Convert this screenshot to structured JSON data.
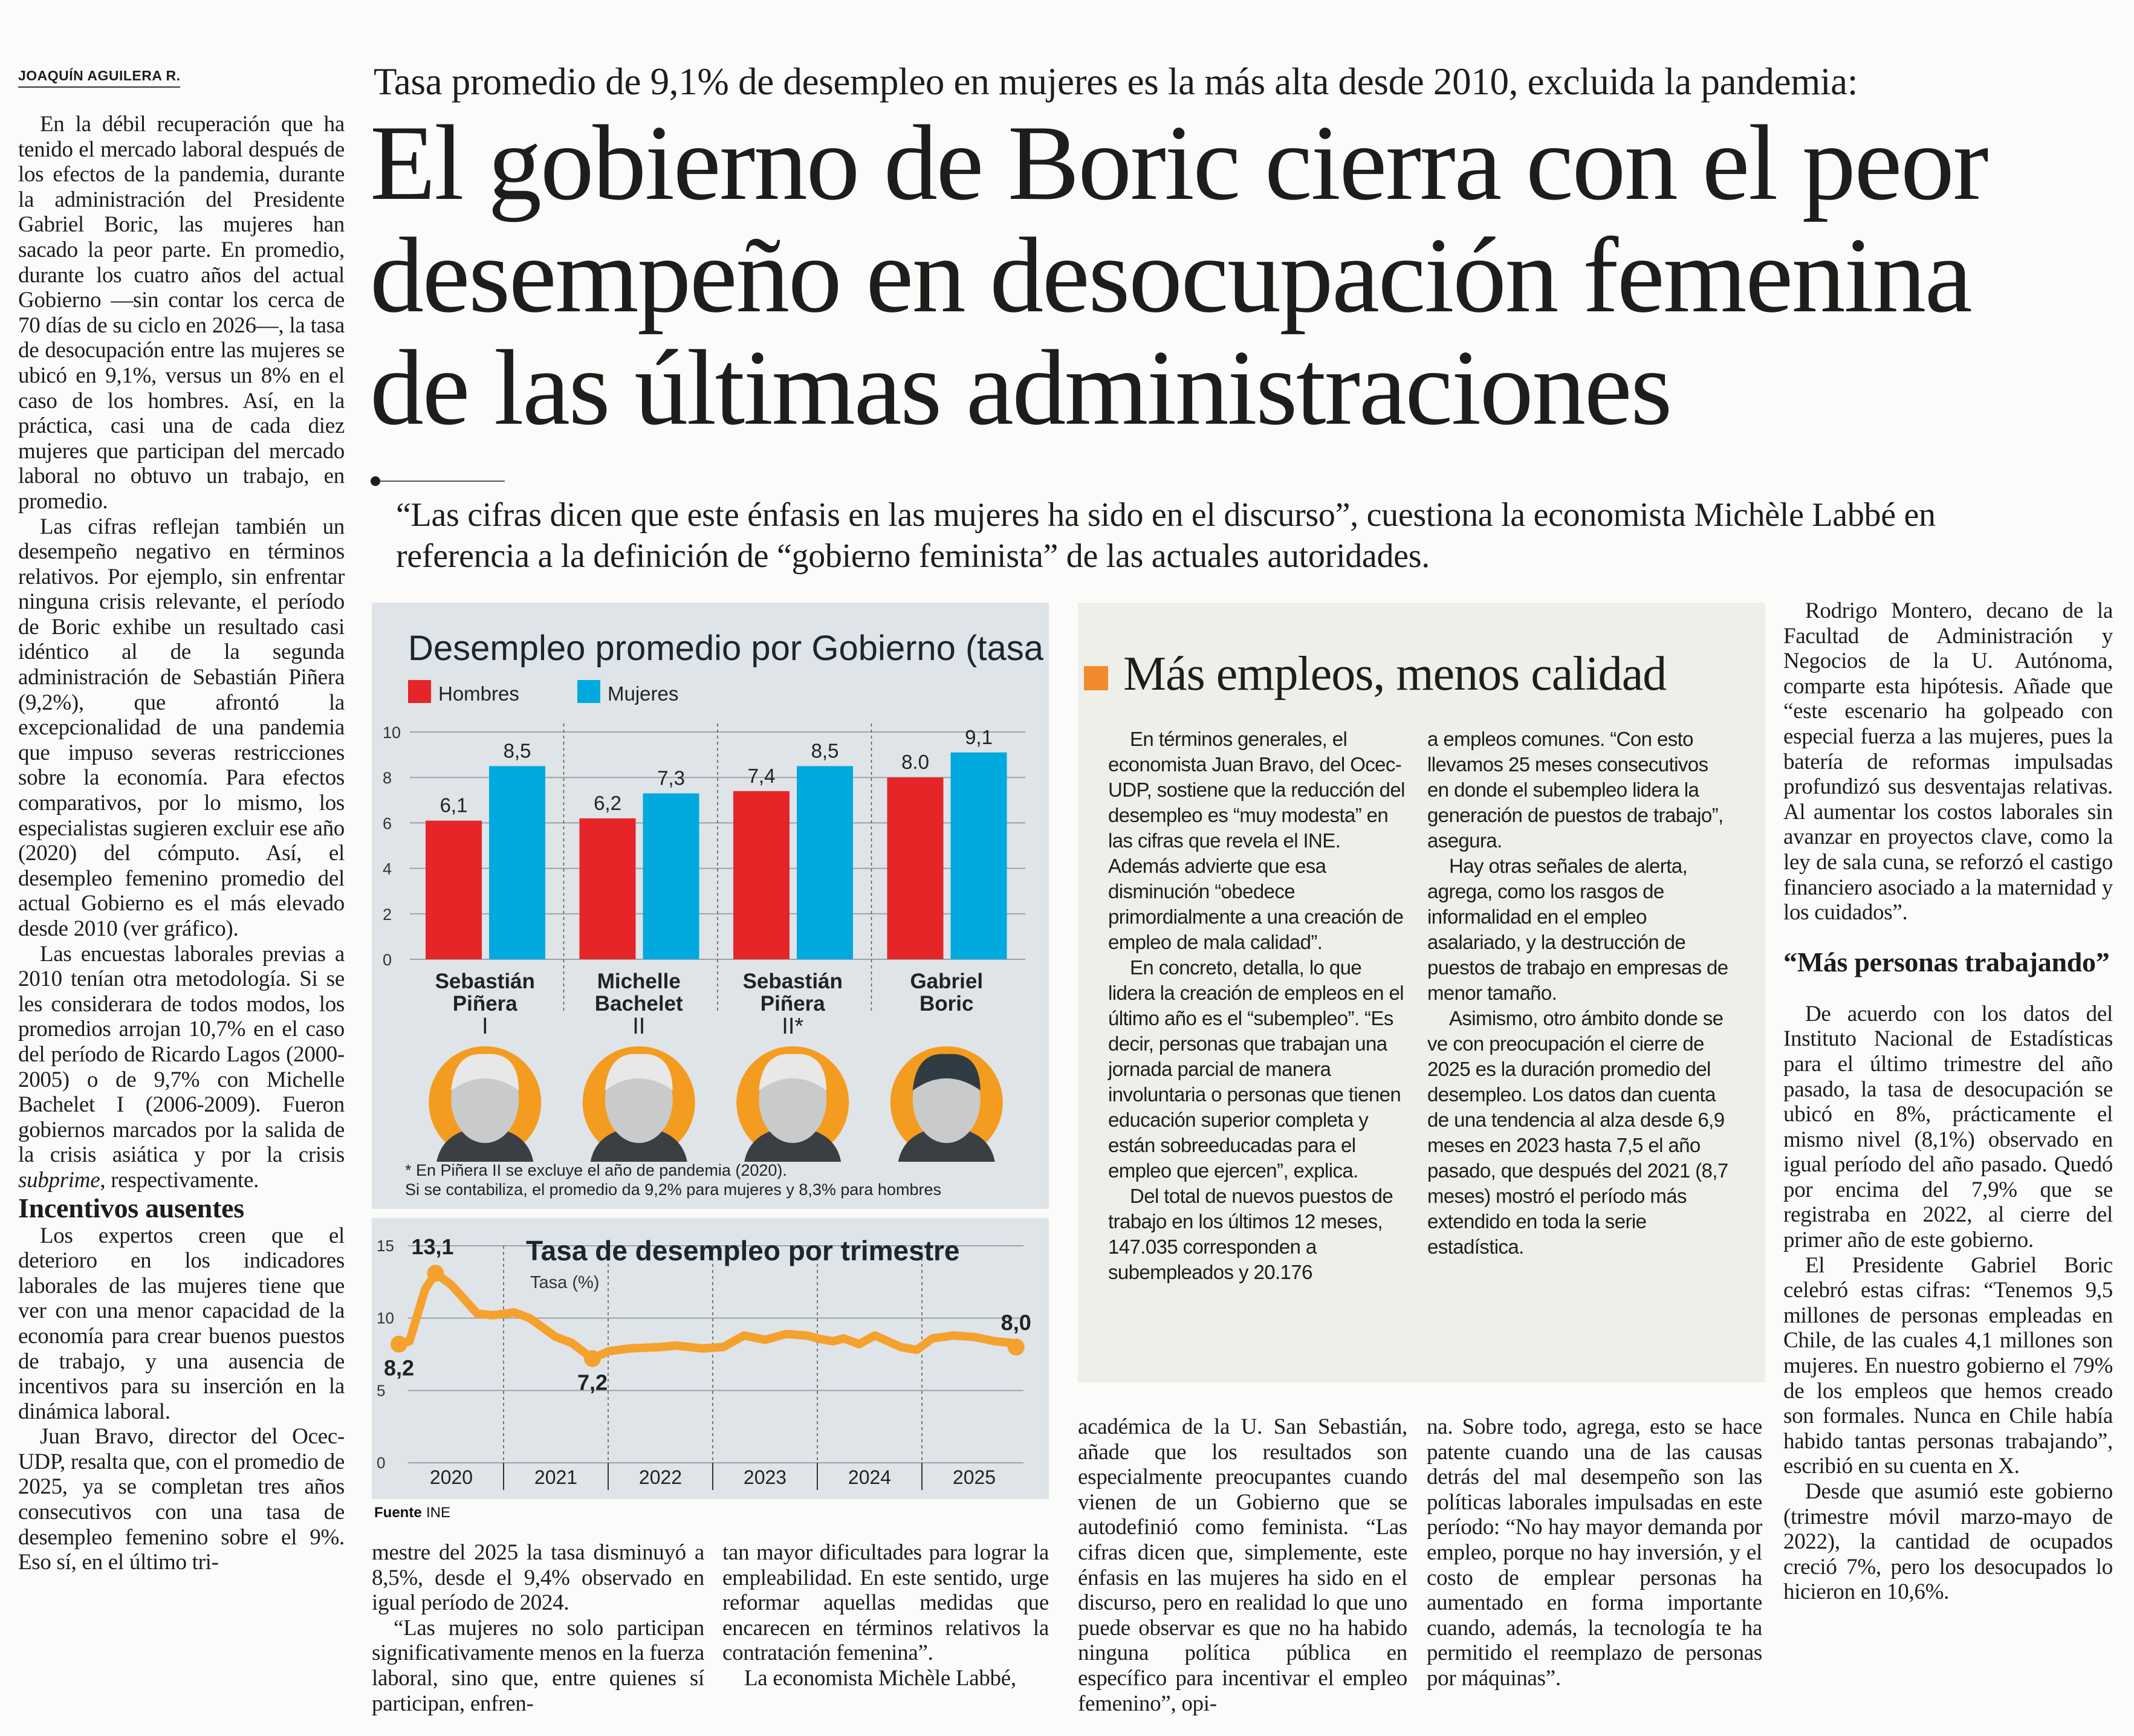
{
  "byline": "JOAQUÍN AGUILERA R.",
  "kicker": "Tasa promedio de 9,1% de desempleo en mujeres es la más alta desde 2010, excluida la pandemia:",
  "headline": {
    "line1": "El gobierno de Boric cierra con el peor",
    "line2": "desempeño en desocupación femenina",
    "line3": "de las últimas administraciones"
  },
  "deck": "“Las cifras dicen que este énfasis en las mujeres ha sido en el discurso”, cuestiona la economista Michèle Labbé en referencia a la definición de “gobierno feminista” de las actuales autoridades.",
  "left_column": {
    "p1": "En la débil recuperación que ha tenido el mercado laboral después de los efectos de la pandemia, durante la administración del Presidente Gabriel Boric, las mujeres han sacado la peor parte. En promedio, durante los cuatro años del actual Gobierno —sin contar los cerca de 70 días de su ciclo en 2026—, la tasa de desocupación entre las mujeres se ubicó en 9,1%, versus un 8% en el caso de los hombres. Así, en la práctica, casi una de cada diez mujeres que participan del mercado laboral no obtuvo un trabajo, en promedio.",
    "p2": "Las cifras reflejan también un desempeño negativo en términos relativos. Por ejemplo, sin enfrentar ninguna crisis relevante, el período de Boric exhibe un resultado casi idéntico al de la segunda administración de Sebastián Piñera (9,2%), que afrontó la excepcionalidad de una pandemia que impuso severas restricciones sobre la economía. Para efectos comparativos, por lo mismo, los especialistas sugieren excluir ese año (2020) del cómputo. Así, el desempleo femenino promedio del actual Gobierno es el más elevado desde 2010 (ver gráfico).",
    "p3_start": "Las encuestas laborales previas a 2010 tenían otra metodología. Si se les considerara de todos modos, los promedios arrojan 10,7% en el caso del período de Ricardo Lagos (2000-2005) o de 9,7% con Michelle Bachelet I (2006-2009). Fueron gobiernos marcados por la salida de la crisis asiática y por la crisis ",
    "p3_italic": "subprime",
    "p3_end": ", respectivamente.",
    "subhead": "Incentivos ausentes",
    "p4": "Los expertos creen que el deterioro en los indicadores laborales de las mujeres tiene que ver con una menor capacidad de la economía para crear buenos puestos de trabajo, y una ausencia de incentivos para su inserción en la dinámica laboral.",
    "p5": "Juan Bravo, director del Ocec-UDP, resalta que, con el promedio de 2025, ya se completan tres años consecutivos con una tasa de desempleo femenino sobre el 9%. Eso sí, en el último tri-"
  },
  "bottom_columns": {
    "a_p1": "mestre del 2025 la tasa disminuyó a 8,5%, desde el 9,4% observado en igual período de 2024.",
    "a_p2": "“Las mujeres no solo participan significativamente menos en la fuerza laboral, sino que, entre quienes sí participan, enfren-",
    "b_p1": "tan mayor dificultades para lograr la empleabilidad. En este sentido, urge reformar aquellas medidas que encarecen en términos relativos la contratación femenina”.",
    "b_p2": "La economista Michèle Labbé,",
    "c_p1": "académica de la U. San Sebastián, añade que los resultados son especialmente preocupantes cuando vienen de un Gobierno que se autodefinió como feminista. “Las cifras dicen que, simplemente, este énfasis en las mujeres ha sido en el discurso, pero en realidad lo que uno puede observar es que no ha habido ninguna política pública en específico para incentivar el empleo femenino”, opi-",
    "d_p1": "na. Sobre todo, agrega, esto se hace patente cuando una de las causas detrás del mal desempeño son las políticas laborales impulsadas en este período: “No hay mayor demanda por empleo, porque no hay inversión, y el costo de emplear personas ha aumentado en forma importante cuando, además, la tecnología te ha permitido el reemplazo de personas por máquinas”."
  },
  "sidebox": {
    "title": "Más empleos, menos calidad",
    "accent_color": "#f08a2c",
    "col1_p1": "En términos generales, el economista Juan Bravo, del Ocec-UDP, sostiene que la reducción del desempleo es “muy modesta” en las cifras que revela el INE. Además advierte que esa disminución “obedece primordialmente a una creación de empleo de mala calidad”.",
    "col1_p2": "En concreto, detalla, lo que lidera la creación de empleos en el último año es el “subempleo”. “Es decir, personas que trabajan una jornada parcial de manera involuntaria o personas que tienen educación superior completa y están sobreeducadas para el empleo que ejercen”, explica.",
    "col1_p3": "Del total de nuevos puestos de trabajo en los últimos 12 meses, 147.035 corresponden a subempleados y 20.176",
    "col2_p1": "a empleos comunes. “Con esto llevamos 25 meses consecutivos en donde el subempleo lidera la generación de puestos de trabajo”, asegura.",
    "col2_p2": "Hay otras señales de alerta, agrega, como los rasgos de informalidad en el empleo asalariado, y la destrucción de puestos de trabajo en empresas de menor tamaño.",
    "col2_p3": "Asimismo, otro ámbito donde se ve con preocupación el cierre de 2025 es la duración promedio del desempleo. Los datos dan cuenta de una tendencia al alza desde 6,9 meses en 2023 hasta 7,5 el año pasado, que después del 2021 (8,7 meses) mostró el período más extendido en toda la serie estadística."
  },
  "right_column": {
    "p1": "Rodrigo Montero, decano de la Facultad de Administración y Negocios de la U. Autónoma, comparte esta hipótesis. Añade que “este escenario ha golpeado con especial fuerza a las mujeres, pues la batería de reformas impulsadas profundizó sus desventajas relativas. Al aumentar los costos laborales sin avanzar en proyectos clave, como la ley de sala cuna, se reforzó el castigo financiero asociado a la maternidad y los cuidados”.",
    "subhead": "“Más personas trabajando”",
    "p2": "De acuerdo con los datos del Instituto Nacional de Estadísticas para el último trimestre del año pasado, la tasa de desocupación se ubicó en 8%, prácticamente el mismo nivel (8,1%) observado en igual período del año pasado. Quedó por encima del 7,9% que se registraba en 2022, al cierre del primer año de este gobierno.",
    "p3": "El Presidente Gabriel Boric celebró estas cifras: “Tenemos 9,5 millones de personas empleadas en Chile, de las cuales 4,1 millones son mujeres. En nuestro gobierno el 79% de los empleos que hemos creado son formales. Nunca en Chile había habido tantas personas trabajando”, escribió en su cuenta en X.",
    "p4": "Desde que asumió este gobierno (trimestre móvil marzo-mayo de 2022), la cantidad de ocupados creció 7%, pero los desocupados lo hicieron en 10,6%."
  },
  "chart_data": [
    {
      "type": "bar",
      "title": "Desempleo promedio por Gobierno (tasa %)",
      "categories": [
        {
          "line1": "Sebastián",
          "line2": "Piñera",
          "line3": "I"
        },
        {
          "line1": "Michelle",
          "line2": "Bachelet",
          "line3": "II"
        },
        {
          "line1": "Sebastián",
          "line2": "Piñera",
          "line3": "II*"
        },
        {
          "line1": "Gabriel",
          "line2": "Boric",
          "line3": ""
        }
      ],
      "series": [
        {
          "name": "Hombres",
          "color": "#e52528",
          "values": [
            6.1,
            6.2,
            7.4,
            8.0
          ],
          "labels": [
            "6,1",
            "6,2",
            "7,4",
            "8.0"
          ]
        },
        {
          "name": "Mujeres",
          "color": "#00a9de",
          "values": [
            8.5,
            7.3,
            8.5,
            9.1
          ],
          "labels": [
            "8,5",
            "7,3",
            "8,5",
            "9,1"
          ]
        }
      ],
      "yticks": [
        0,
        2,
        4,
        6,
        8,
        10
      ],
      "ylim": [
        0,
        10
      ],
      "grid": true,
      "legend": "top-left",
      "portraits": [
        "sebastian-pinera",
        "michelle-bachelet",
        "sebastian-pinera",
        "gabriel-boric"
      ],
      "portrait_ring_color": "#f39c1f",
      "footnote1": "* En Piñera II se excluye el año de pandemia (2020).",
      "footnote2": "Si se contabiliza, el promedio da 9,2% para mujeres y 8,3% para hombres"
    },
    {
      "type": "line",
      "title": "Tasa de desempleo por trimestre",
      "ylabel": "Tasa (%)",
      "color": "#f5a12e",
      "yticks": [
        0,
        5,
        10,
        15
      ],
      "ylim": [
        0,
        15
      ],
      "xlim": [
        2020,
        2026
      ],
      "xcategories": [
        "2020",
        "2021",
        "2022",
        "2023",
        "2024",
        "2025"
      ],
      "grid": true,
      "points": [
        [
          2020.0,
          8.2
        ],
        [
          2020.1,
          8.4
        ],
        [
          2020.25,
          12.0
        ],
        [
          2020.35,
          13.1
        ],
        [
          2020.5,
          12.3
        ],
        [
          2020.75,
          10.3
        ],
        [
          2020.9,
          10.2
        ],
        [
          2021.1,
          10.4
        ],
        [
          2021.25,
          10.0
        ],
        [
          2021.5,
          8.7
        ],
        [
          2021.65,
          8.3
        ],
        [
          2021.85,
          7.2
        ],
        [
          2022.0,
          7.7
        ],
        [
          2022.2,
          7.9
        ],
        [
          2022.5,
          8.0
        ],
        [
          2022.65,
          8.1
        ],
        [
          2022.9,
          7.9
        ],
        [
          2023.1,
          8.0
        ],
        [
          2023.3,
          8.8
        ],
        [
          2023.5,
          8.5
        ],
        [
          2023.7,
          8.9
        ],
        [
          2023.9,
          8.8
        ],
        [
          2024.0,
          8.6
        ],
        [
          2024.15,
          8.4
        ],
        [
          2024.25,
          8.6
        ],
        [
          2024.4,
          8.2
        ],
        [
          2024.55,
          8.8
        ],
        [
          2024.8,
          8.0
        ],
        [
          2024.95,
          7.8
        ],
        [
          2025.1,
          8.6
        ],
        [
          2025.3,
          8.8
        ],
        [
          2025.5,
          8.7
        ],
        [
          2025.7,
          8.4
        ],
        [
          2025.85,
          8.3
        ],
        [
          2025.9,
          8.0
        ]
      ],
      "annotations": [
        {
          "x": 2020.0,
          "y": 8.2,
          "label": "8,2",
          "pos": "below"
        },
        {
          "x": 2020.35,
          "y": 13.1,
          "label": "13,1",
          "pos": "above"
        },
        {
          "x": 2021.85,
          "y": 7.2,
          "label": "7,2",
          "pos": "below"
        },
        {
          "x": 2025.9,
          "y": 8.0,
          "label": "8,0",
          "pos": "above"
        }
      ],
      "source_label": "Fuente",
      "source": "INE"
    }
  ]
}
